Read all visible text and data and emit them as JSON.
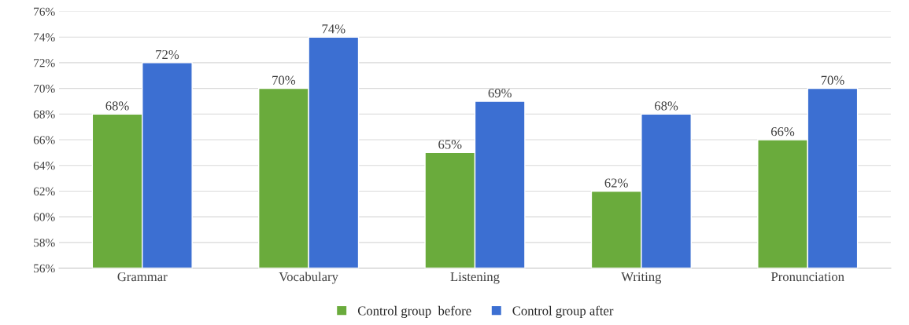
{
  "chart_data": {
    "type": "bar",
    "categories": [
      "Grammar",
      "Vocabulary",
      "Listening",
      "Writing",
      "Pronunciation"
    ],
    "series": [
      {
        "name": "Control group  before",
        "color": "#6aab3c",
        "values": [
          68,
          70,
          65,
          62,
          66
        ],
        "value_labels": [
          "68%",
          "70%",
          "65%",
          "62%",
          "66%"
        ]
      },
      {
        "name": "Control group after",
        "color": "#3c6fd2",
        "values": [
          72,
          74,
          69,
          68,
          70
        ],
        "value_labels": [
          "72%",
          "74%",
          "69%",
          "68%",
          "70%"
        ]
      }
    ],
    "ylim": [
      56,
      76
    ],
    "yticks": [
      {
        "value": 56,
        "label": "56%"
      },
      {
        "value": 58,
        "label": "58%"
      },
      {
        "value": 60,
        "label": "60%"
      },
      {
        "value": 62,
        "label": "62%"
      },
      {
        "value": 64,
        "label": "64%"
      },
      {
        "value": 66,
        "label": "66%"
      },
      {
        "value": 68,
        "label": "68%"
      },
      {
        "value": 70,
        "label": "70%"
      },
      {
        "value": 72,
        "label": "72%"
      },
      {
        "value": 74,
        "label": "74%"
      },
      {
        "value": 76,
        "label": "76%"
      }
    ],
    "grid": "y",
    "legend": "bottom"
  }
}
